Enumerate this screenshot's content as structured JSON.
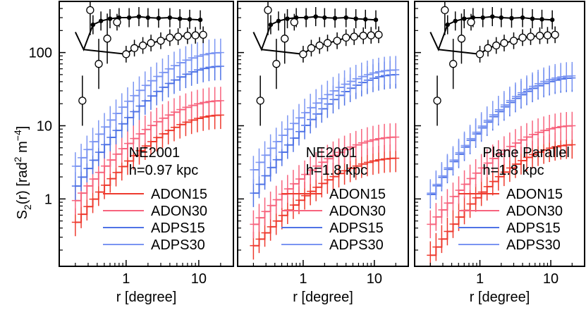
{
  "figure": {
    "ylabel_main": "S",
    "ylabel_sub": "2",
    "ylabel_rest": "(r) [rad",
    "ylabel_sup1": "2",
    "ylabel_mid": " m",
    "ylabel_sup2": "−4",
    "ylabel_end": "]",
    "xlabel": "r [degree]",
    "y_ticks": [
      {
        "value": 1,
        "label": "1"
      },
      {
        "value": 10,
        "label": "10"
      },
      {
        "value": 100,
        "label": "100"
      }
    ],
    "x_ticks": [
      {
        "value": 1,
        "label": "1"
      },
      {
        "value": 10,
        "label": "10"
      }
    ],
    "xlim": [
      0.12,
      30
    ],
    "ylim": [
      0.12,
      500
    ]
  },
  "colors": {
    "ADON15": "#ee3a2e",
    "ADON30": "#f7637d",
    "ADPS15": "#4f73e6",
    "ADPS30": "#7b95f2",
    "reference": "#000000"
  },
  "chart_data": [
    {
      "type": "line",
      "panel": "left",
      "annotation_line1": "NE2001",
      "annotation_line2": "h=0.97 kpc",
      "x_scale": "log",
      "y_scale": "log",
      "xlim": [
        0.12,
        30
      ],
      "ylim": [
        0.12,
        500
      ],
      "series": [
        {
          "name": "ADON15",
          "start": 0.48,
          "end": 14,
          "x_min": 0.2,
          "x_max": 20
        },
        {
          "name": "ADON30",
          "start": 0.95,
          "end": 22,
          "x_min": 0.2,
          "x_max": 20
        },
        {
          "name": "ADPS15",
          "start": 1.5,
          "end": 65,
          "x_min": 0.2,
          "x_max": 20
        },
        {
          "name": "ADPS30",
          "start": 2.8,
          "end": 100,
          "x_min": 0.2,
          "x_max": 20
        }
      ]
    },
    {
      "type": "line",
      "panel": "middle",
      "annotation_line1": "NE2001",
      "annotation_line2": "h=1.8 kpc",
      "x_scale": "log",
      "y_scale": "log",
      "xlim": [
        0.12,
        30
      ],
      "ylim": [
        0.12,
        500
      ],
      "series": [
        {
          "name": "ADON15",
          "start": 0.23,
          "end": 3.6,
          "x_min": 0.2,
          "x_max": 20
        },
        {
          "name": "ADON30",
          "start": 0.45,
          "end": 7.0,
          "x_min": 0.2,
          "x_max": 20
        },
        {
          "name": "ADPS15",
          "start": 1.2,
          "end": 50,
          "x_min": 0.2,
          "x_max": 20
        },
        {
          "name": "ADPS30",
          "start": 2.5,
          "end": 58,
          "x_min": 0.2,
          "x_max": 20
        }
      ]
    },
    {
      "type": "line",
      "panel": "right",
      "annotation_line1": "Plane Parallel",
      "annotation_line2": "h=1.8 kpc",
      "x_scale": "log",
      "y_scale": "log",
      "xlim": [
        0.12,
        30
      ],
      "ylim": [
        0.12,
        500
      ],
      "series": [
        {
          "name": "ADON15",
          "start": 0.17,
          "end": 5.5,
          "x_min": 0.2,
          "x_max": 20
        },
        {
          "name": "ADON30",
          "start": 0.45,
          "end": 10,
          "x_min": 0.2,
          "x_max": 20
        },
        {
          "name": "ADPS15",
          "start": 1.15,
          "end": 45,
          "x_min": 0.2,
          "x_max": 20
        },
        {
          "name": "ADPS30",
          "start": 1.2,
          "end": 48,
          "x_min": 0.2,
          "x_max": 20
        }
      ]
    }
  ],
  "reference_data": {
    "filled_points": [
      {
        "x": 0.35,
        "y": 240
      },
      {
        "x": 0.45,
        "y": 270
      },
      {
        "x": 0.6,
        "y": 290
      },
      {
        "x": 0.8,
        "y": 300
      },
      {
        "x": 1.1,
        "y": 300
      },
      {
        "x": 1.5,
        "y": 310
      },
      {
        "x": 2.0,
        "y": 300
      },
      {
        "x": 2.8,
        "y": 295
      },
      {
        "x": 4.0,
        "y": 300
      },
      {
        "x": 5.5,
        "y": 290
      },
      {
        "x": 7.5,
        "y": 285
      },
      {
        "x": 10.5,
        "y": 280
      }
    ],
    "open_points": [
      {
        "x": 0.25,
        "y": 22
      },
      {
        "x": 0.32,
        "y": 380
      },
      {
        "x": 0.42,
        "y": 70
      },
      {
        "x": 0.55,
        "y": 155
      },
      {
        "x": 0.75,
        "y": 260
      },
      {
        "x": 1.0,
        "y": 95
      },
      {
        "x": 1.3,
        "y": 115
      },
      {
        "x": 1.7,
        "y": 125
      },
      {
        "x": 2.2,
        "y": 135
      },
      {
        "x": 3.0,
        "y": 145
      },
      {
        "x": 4.0,
        "y": 160
      },
      {
        "x": 5.2,
        "y": 165
      },
      {
        "x": 7.0,
        "y": 170
      },
      {
        "x": 9.0,
        "y": 172
      },
      {
        "x": 11.5,
        "y": 175
      }
    ]
  }
}
